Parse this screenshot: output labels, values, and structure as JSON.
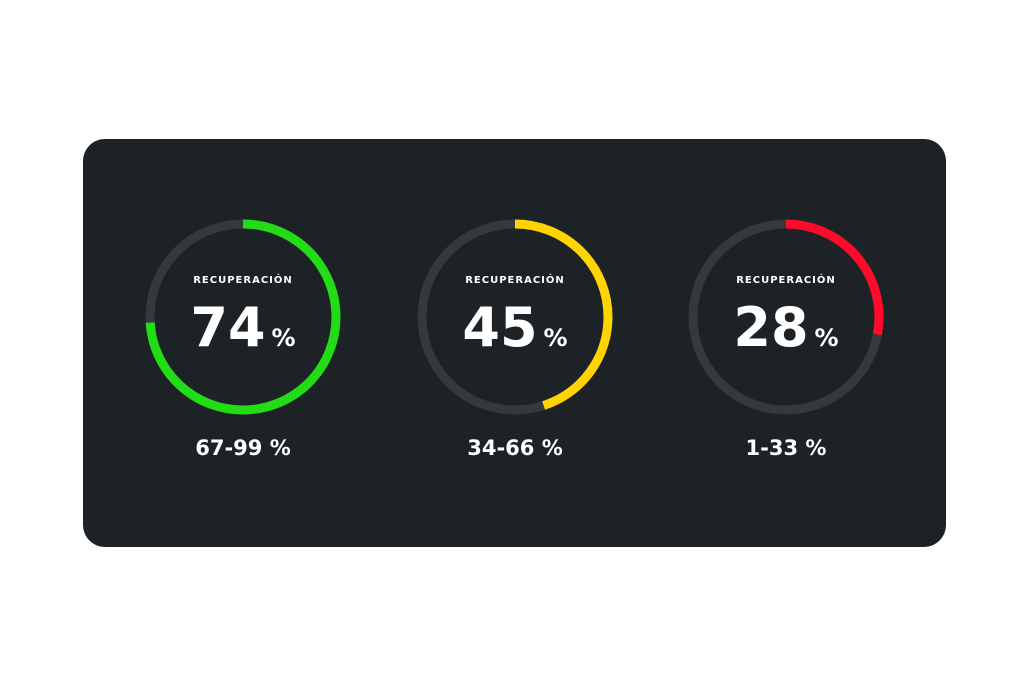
{
  "gauges": [
    {
      "label": "RECUPERACIÓN",
      "value": 74,
      "unit": "%",
      "range": "67-99 %",
      "color": "#22dd16"
    },
    {
      "label": "RECUPERACIÓN",
      "value": 45,
      "unit": "%",
      "range": "34-66 %",
      "color": "#ffd400"
    },
    {
      "label": "RECUPERACIÓN",
      "value": 28,
      "unit": "%",
      "range": "1-33 %",
      "color": "#ff0a2a"
    }
  ]
}
